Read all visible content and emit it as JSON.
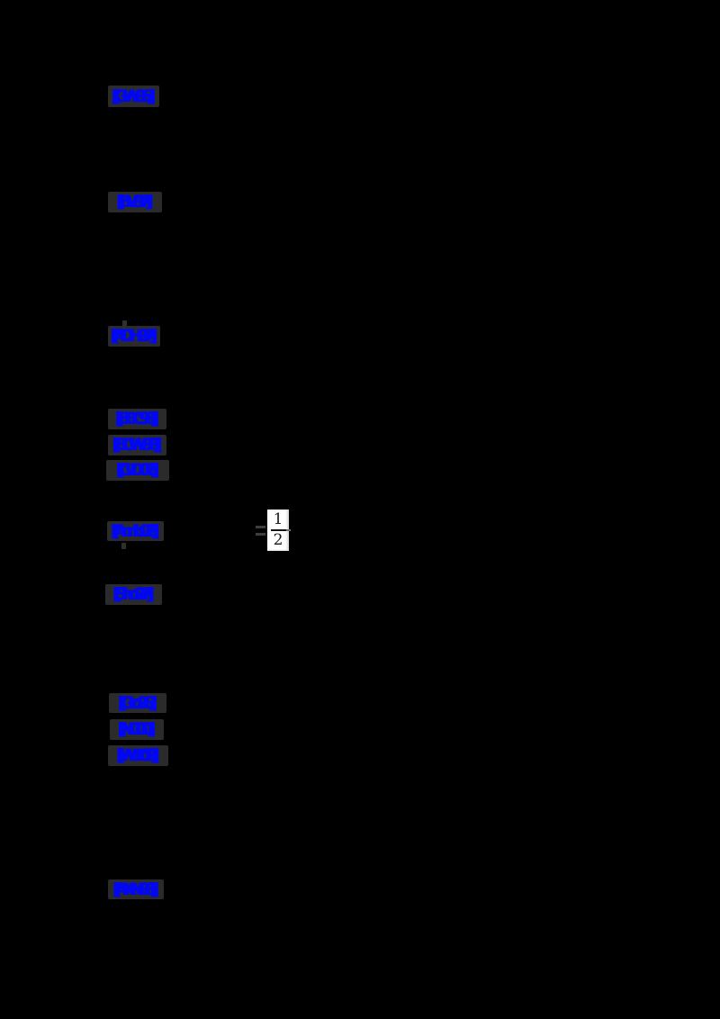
{
  "page": {
    "background_color": "#000000",
    "description": "paper page rendered on transparent background; only hyperlink boxes and one equation fragment visible"
  },
  "colors": {
    "link_blue": "#0207f2",
    "link_box_gray": "#2b2b2b",
    "equation_background": "#ffffff",
    "equation_text": "#1a1a1a",
    "equals_gray": "#3e3e3e"
  },
  "citations": [
    {
      "label": "[GW95]"
    },
    {
      "label": "[BV97]"
    },
    {
      "label": "[ADH97]"
    },
    {
      "label": "[BBC98]"
    },
    {
      "label": "[BCW98]"
    },
    {
      "label": "[CvD02]"
    },
    {
      "label": "[Amb02]"
    },
    {
      "label": "[Sho97]"
    },
    {
      "label": "[Gro96]"
    },
    {
      "label": "[NC00]"
    },
    {
      "label": "[Wat09]"
    },
    {
      "label": "[AKN98]"
    }
  ],
  "equation": {
    "equals": "=",
    "numerator": "1",
    "denominator": "2",
    "value": "1/2"
  }
}
